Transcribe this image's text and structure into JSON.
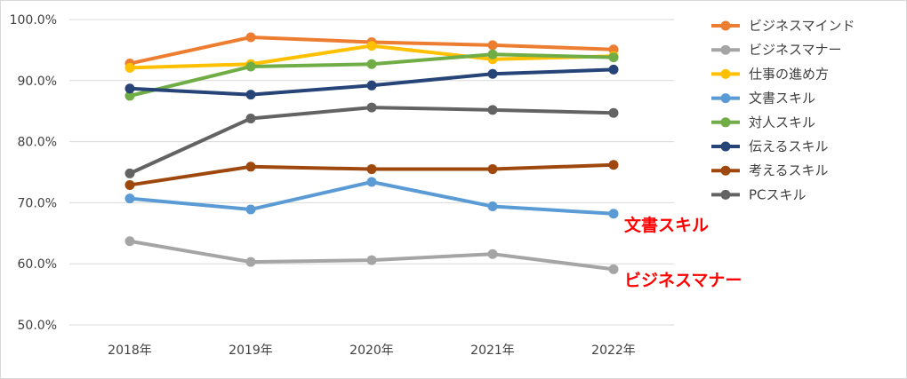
{
  "chart_data": {
    "type": "line",
    "x": [
      "2018年",
      "2019年",
      "2020年",
      "2021年",
      "2022年"
    ],
    "ylim": [
      0.5,
      1.0
    ],
    "yticks": [
      "50.0%",
      "60.0%",
      "70.0%",
      "80.0%",
      "90.0%",
      "100.0%"
    ],
    "grid": "horizontal",
    "legend_position": "right",
    "series": [
      {
        "name": "ビジネスマインド",
        "color": "#ed7d31",
        "values": [
          0.928,
          0.971,
          0.963,
          0.958,
          0.951
        ]
      },
      {
        "name": "ビジネスマナー",
        "color": "#a5a5a5",
        "values": [
          0.637,
          0.603,
          0.606,
          0.616,
          0.591
        ]
      },
      {
        "name": "仕事の進め方",
        "color": "#ffc000",
        "values": [
          0.921,
          0.927,
          0.957,
          0.935,
          0.94
        ]
      },
      {
        "name": "文書スキル",
        "color": "#5b9bd5",
        "values": [
          0.707,
          0.689,
          0.734,
          0.694,
          0.682
        ]
      },
      {
        "name": "対人スキル",
        "color": "#70ad47",
        "values": [
          0.875,
          0.923,
          0.927,
          0.943,
          0.938
        ]
      },
      {
        "name": "伝えるスキル",
        "color": "#264478",
        "values": [
          0.887,
          0.877,
          0.892,
          0.911,
          0.918
        ]
      },
      {
        "name": "考えるスキル",
        "color": "#9e480e",
        "values": [
          0.729,
          0.759,
          0.755,
          0.755,
          0.762
        ]
      },
      {
        "name": "PCスキル",
        "color": "#636363",
        "values": [
          0.748,
          0.838,
          0.856,
          0.852,
          0.847
        ]
      }
    ],
    "annotations": [
      {
        "text": "文書スキル",
        "color": "#ff0000"
      },
      {
        "text": "ビジネスマナー",
        "color": "#ff0000"
      }
    ]
  }
}
